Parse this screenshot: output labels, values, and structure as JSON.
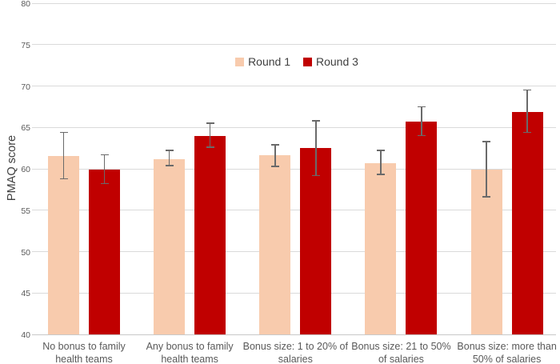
{
  "figure": {
    "background": "#FFFFFF"
  },
  "chart_data": {
    "type": "bar",
    "title": "",
    "xlabel": "",
    "ylabel": "PMAQ score",
    "ylim": [
      40,
      80
    ],
    "ytick_step": 5,
    "grid": true,
    "legend_position": "top-center",
    "categories": [
      "No bonus to family health teams",
      "Any bonus to family health teams",
      "Bonus size: 1 to 20% of salaries",
      "Bonus size: 21 to 50% of salaries",
      "Bonus size: more than 50% of salaries"
    ],
    "series": [
      {
        "name": "Round 1",
        "color": "#F8CBAD",
        "values": [
          61.5,
          61.2,
          61.6,
          60.7,
          59.9
        ],
        "error_low": [
          58.8,
          60.4,
          60.3,
          59.3,
          56.6
        ],
        "error_high": [
          64.4,
          62.2,
          62.9,
          62.2,
          63.3
        ]
      },
      {
        "name": "Round 3",
        "color": "#C00000",
        "values": [
          59.9,
          64.0,
          62.5,
          65.7,
          66.9
        ],
        "error_low": [
          58.2,
          62.6,
          59.2,
          64.0,
          64.4
        ],
        "error_high": [
          61.7,
          65.5,
          65.8,
          67.5,
          69.5
        ]
      }
    ],
    "colors": {
      "error_bar": "#6A6A6A",
      "gridline": "#DADADA",
      "axis_line": "#C9C9C9",
      "tick_label": "#595959",
      "category_label": "#595959",
      "legend_text": "#404040",
      "y_title": "#404040"
    }
  }
}
